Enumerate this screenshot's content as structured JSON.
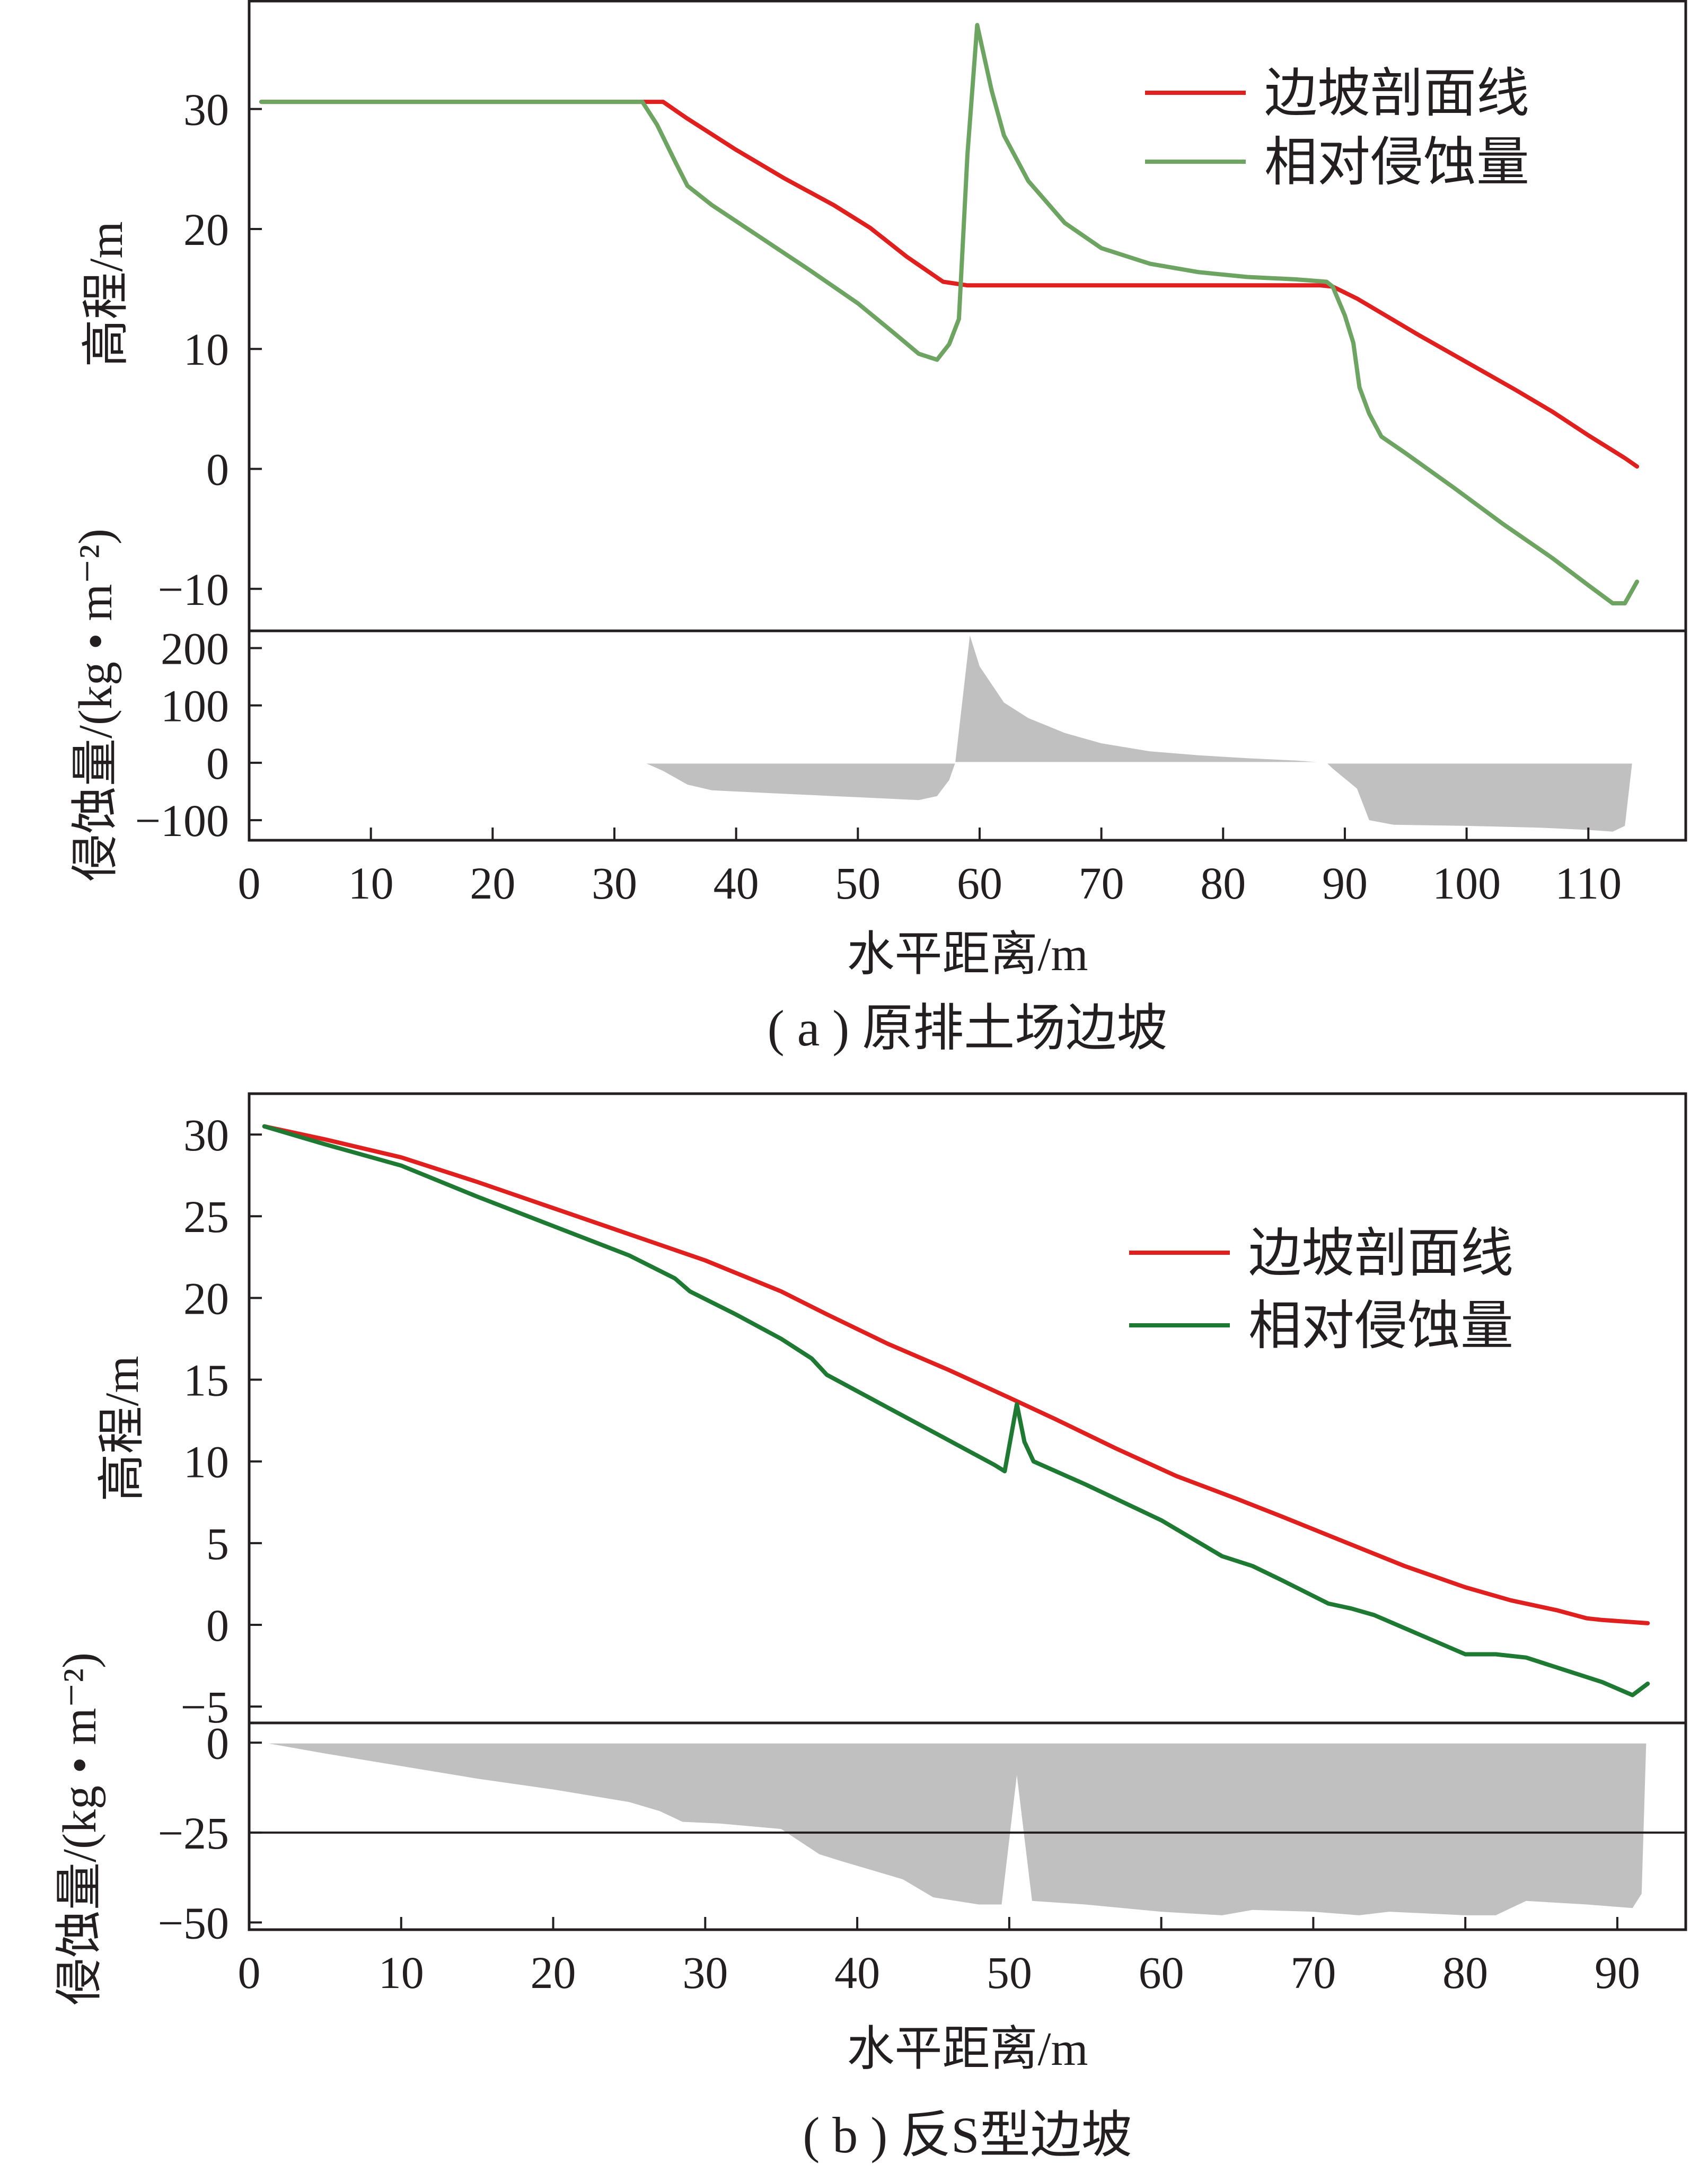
{
  "colors": {
    "profile_line": "#e0201f",
    "erosion_line_a": "#6ea462",
    "erosion_line_b": "#1e7a32",
    "erosion_fill": "#c0c0c0",
    "axis": "#231f20"
  },
  "chart_data": [
    {
      "type": "line",
      "panel": "a",
      "caption": "( a ) 原排土场边坡",
      "xlabel": "水平距离/m",
      "ylabel_upper": "高程/m",
      "ylabel_lower": "侵蚀量/(kg • m⁻²)",
      "legend_position": "top-right",
      "legend": [
        "边坡剖面线",
        "相对侵蚀量"
      ],
      "xlim": [
        0,
        118
      ],
      "xticks": [
        0,
        10,
        20,
        30,
        40,
        50,
        60,
        70,
        80,
        90,
        100,
        110
      ],
      "upper": {
        "ylim": [
          -13.5,
          39
        ],
        "yticks": [
          -10,
          0,
          10,
          20,
          30
        ],
        "series": [
          {
            "name": "边坡剖面线",
            "color_key": "profile_line",
            "x": [
              1,
              33,
              34,
              36,
              40,
              44,
              48,
              51,
              54,
              57,
              59,
              62,
              70,
              80,
              88,
              89,
              91,
              93,
              96,
              100,
              104,
              107,
              110,
              113,
              114
            ],
            "y": [
              30.6,
              30.6,
              30.6,
              29.2,
              26.6,
              24.2,
              22.0,
              20.1,
              17.7,
              15.6,
              15.3,
              15.3,
              15.3,
              15.3,
              15.3,
              15.2,
              14.2,
              13.0,
              11.2,
              8.9,
              6.6,
              4.8,
              2.8,
              0.9,
              0.2
            ]
          },
          {
            "name": "相对侵蚀量",
            "color_key": "erosion_line_a",
            "x": [
              1,
              32.3,
              33.5,
              35,
              36,
              38,
              42,
              46,
              50,
              53,
              55,
              56.5,
              57.5,
              58.3,
              59,
              59.8,
              61,
              62,
              64,
              67,
              70,
              74,
              78,
              82,
              86,
              88.5,
              89,
              90,
              90.7,
              91.2,
              92,
              93,
              95,
              99,
              103,
              107,
              110,
              112,
              113,
              114
            ],
            "y": [
              30.6,
              30.6,
              28.7,
              25.6,
              23.6,
              22.0,
              19.3,
              16.6,
              13.8,
              11.3,
              9.6,
              9.1,
              10.4,
              12.5,
              26.2,
              37.0,
              31.5,
              27.8,
              24.0,
              20.5,
              18.4,
              17.1,
              16.4,
              16.0,
              15.8,
              15.6,
              15.2,
              12.8,
              10.5,
              6.8,
              4.6,
              2.7,
              1.3,
              -1.6,
              -4.6,
              -7.4,
              -9.7,
              -11.2,
              -11.2,
              -9.4
            ]
          }
        ]
      },
      "lower": {
        "ylim": [
          -135,
          230
        ],
        "yticks": [
          -100,
          0,
          100,
          200
        ],
        "series": [
          {
            "name": "侵蚀量",
            "color_key": "erosion_fill",
            "x": [
              32.5,
              34,
              36,
              38,
              42,
              48,
              52,
              55,
              56.5,
              57.5,
              58,
              59.2,
              60,
              62,
              64,
              67,
              70,
              74,
              78,
              82,
              86,
              88.5,
              89,
              91,
              92,
              94,
              100,
              106,
              110,
              112,
              113,
              113.6
            ],
            "y": [
              0,
              -14,
              -38,
              -48,
              -52,
              -58,
              -62,
              -65,
              -58,
              -30,
              0,
              222,
              168,
              105,
              78,
              52,
              34,
              20,
              13,
              8,
              4,
              0,
              -10,
              -45,
              -100,
              -108,
              -110,
              -113,
              -117,
              -120,
              -110,
              0
            ]
          }
        ]
      }
    },
    {
      "type": "line",
      "panel": "b",
      "caption": "( b ) 反S型边坡",
      "xlabel": "水平距离/m",
      "ylabel_upper": "高程/m",
      "ylabel_lower": "侵蚀量/(kg • m⁻²)",
      "legend_position": "top-right",
      "legend": [
        "边坡剖面线",
        "相对侵蚀量"
      ],
      "xlim": [
        0,
        94.5
      ],
      "xticks": [
        0,
        10,
        20,
        30,
        40,
        50,
        60,
        70,
        80,
        90
      ],
      "upper": {
        "ylim": [
          -6,
          32.5
        ],
        "yticks": [
          -5,
          0,
          5,
          10,
          15,
          20,
          25,
          30
        ],
        "series": [
          {
            "name": "边坡剖面线",
            "color_key": "profile_line",
            "x": [
              1,
              5,
              10,
              15,
              20,
              25,
              30,
              35,
              38,
              42,
              46,
              50,
              53,
              57,
              61,
              65,
              68,
              72,
              76,
              80,
              83,
              86,
              88,
              89,
              92
            ],
            "y": [
              30.5,
              29.7,
              28.6,
              27.1,
              25.5,
              23.9,
              22.3,
              20.4,
              19.0,
              17.2,
              15.6,
              13.9,
              12.6,
              10.8,
              9.1,
              7.7,
              6.6,
              5.1,
              3.6,
              2.3,
              1.5,
              0.9,
              0.4,
              0.3,
              0.1
            ]
          },
          {
            "name": "相对侵蚀量",
            "color_key": "erosion_line_b",
            "x": [
              1,
              5,
              10,
              15,
              20,
              25,
              28,
              29,
              32,
              35,
              37,
              38,
              42,
              46,
              49,
              49.7,
              50.5,
              51,
              51.6,
              55,
              60,
              64,
              66,
              68,
              71,
              72.5,
              74,
              77,
              80,
              82,
              84,
              86,
              89,
              91,
              92
            ],
            "y": [
              30.5,
              29.4,
              28.1,
              26.2,
              24.4,
              22.6,
              21.2,
              20.4,
              19.0,
              17.5,
              16.3,
              15.3,
              13.3,
              11.3,
              9.8,
              9.4,
              13.5,
              11.2,
              10.0,
              8.6,
              6.4,
              4.2,
              3.6,
              2.7,
              1.3,
              1.0,
              0.6,
              -0.6,
              -1.8,
              -1.8,
              -2.0,
              -2.6,
              -3.5,
              -4.3,
              -3.6
            ]
          }
        ]
      },
      "lower": {
        "ylim": [
          -52,
          5.5
        ],
        "yticks": [
          -50,
          -25,
          0
        ],
        "reference_line": -25,
        "series": [
          {
            "name": "侵蚀量",
            "color_key": "erosion_fill",
            "x": [
              1,
              5,
              10,
              15,
              20,
              25,
              27,
              28.5,
              31,
              35,
              37.5,
              39,
              43,
              45,
              48,
              49.5,
              50.5,
              51.5,
              55,
              60,
              64,
              66,
              70,
              73,
              75,
              80,
              82,
              84,
              88,
              91,
              91.6,
              91.9
            ],
            "y": [
              0,
              -3,
              -6.5,
              -10,
              -13,
              -16.5,
              -19,
              -22,
              -22.5,
              -24,
              -31,
              -33,
              -38,
              -43,
              -45,
              -45,
              -9,
              -44,
              -45,
              -47,
              -48,
              -46.5,
              -47,
              -48,
              -47,
              -48,
              -48,
              -44,
              -45,
              -46,
              -42,
              0
            ]
          }
        ]
      }
    }
  ]
}
